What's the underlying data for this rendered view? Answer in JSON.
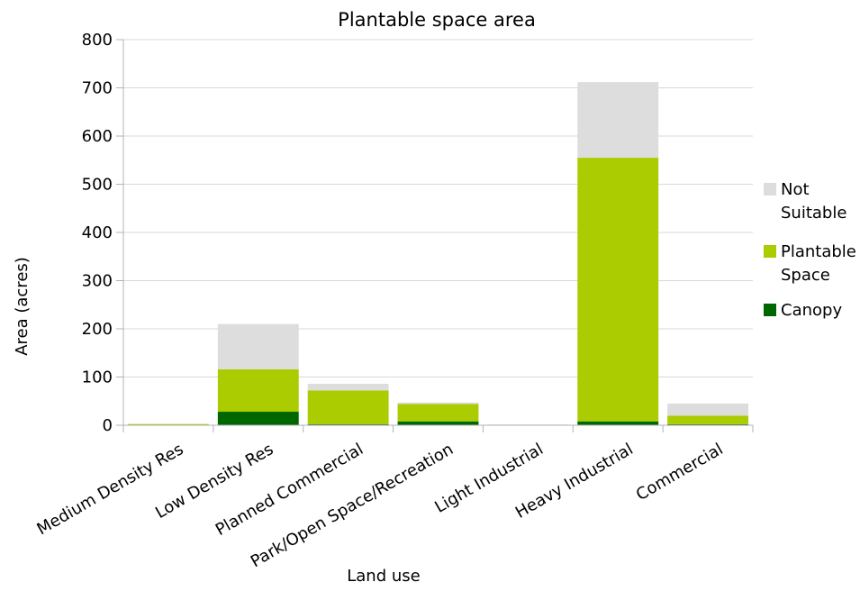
{
  "chart_data": {
    "type": "bar",
    "stacked": true,
    "title": "Plantable space area",
    "xlabel": "Land use",
    "ylabel": "Area (acres)",
    "ylim": [
      0,
      800
    ],
    "yticks": [
      0,
      100,
      200,
      300,
      400,
      500,
      600,
      700,
      800
    ],
    "grid": true,
    "legend_position": "right",
    "categories": [
      "Medium Density Res",
      "Low Density Res",
      "Planned Commercial",
      "Park/Open Space/Recreation",
      "Light Industrial",
      "Heavy Industrial",
      "Commercial"
    ],
    "series": [
      {
        "name": "Canopy",
        "color": "#006600",
        "values": [
          0.5,
          28,
          2,
          8,
          0.5,
          8,
          2
        ]
      },
      {
        "name": "Plantable Space",
        "color": "#aacc00",
        "values": [
          2,
          88,
          70,
          36,
          0.5,
          547,
          18
        ]
      },
      {
        "name": "Not Suitable",
        "color": "#dddddd",
        "values": [
          0.5,
          94,
          14,
          3,
          0.5,
          157,
          25
        ]
      }
    ],
    "legend": [
      {
        "lines": [
          "Not",
          "Suitable"
        ],
        "color": "#dddddd"
      },
      {
        "lines": [
          "Plantable",
          "Space"
        ],
        "color": "#aacc00"
      },
      {
        "lines": [
          "Canopy"
        ],
        "color": "#006600"
      }
    ]
  }
}
